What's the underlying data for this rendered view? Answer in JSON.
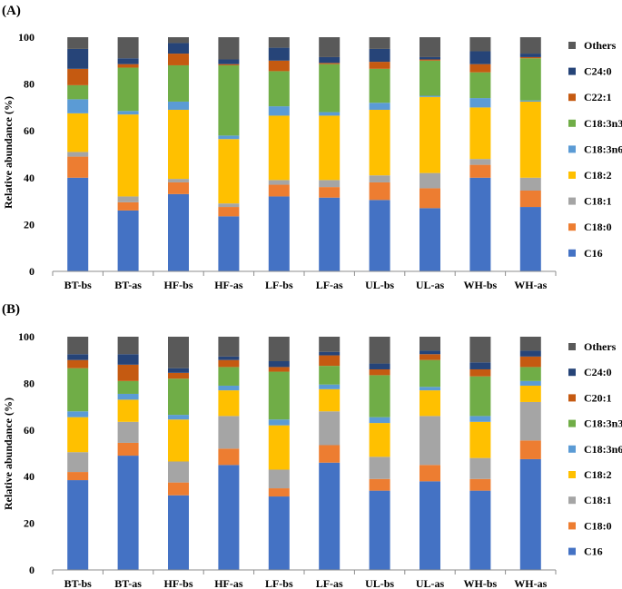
{
  "chart_data": [
    {
      "type": "bar",
      "stacked": true,
      "panel": "(A)",
      "ylabel": "Relative abundance (%)",
      "ylim": [
        0,
        100
      ],
      "yticks": [
        0,
        20,
        40,
        60,
        80,
        100
      ],
      "categories": [
        "BT-bs",
        "BT-as",
        "HF-bs",
        "HF-as",
        "LF-bs",
        "LF-as",
        "UL-bs",
        "UL-as",
        "WH-bs",
        "WH-as"
      ],
      "series": [
        {
          "name": "C16",
          "color": "#4472C4",
          "values": [
            40,
            26,
            33,
            23.5,
            32,
            31.5,
            30.5,
            27,
            40,
            27.5
          ]
        },
        {
          "name": "C18:0",
          "color": "#ED7D31",
          "values": [
            9,
            3.5,
            5,
            4,
            5,
            4.5,
            7.5,
            8.5,
            5.5,
            7
          ]
        },
        {
          "name": "C18:1",
          "color": "#A5A5A5",
          "values": [
            2,
            2.5,
            1.5,
            1.5,
            2,
            3,
            3,
            6.5,
            2.5,
            5.5
          ]
        },
        {
          "name": "C18:2",
          "color": "#FFC000",
          "values": [
            16.5,
            35,
            29.5,
            27.5,
            27.5,
            27.5,
            28,
            32.5,
            22,
            32.5
          ]
        },
        {
          "name": "C18:3n6",
          "color": "#5B9BD5",
          "values": [
            6,
            1.5,
            3.5,
            1.5,
            4,
            1.5,
            3,
            0.5,
            4,
            0.5
          ]
        },
        {
          "name": "C18:3n3",
          "color": "#70AD47",
          "values": [
            6,
            18.5,
            15.5,
            30,
            15,
            20.5,
            14.5,
            15,
            11,
            18
          ]
        },
        {
          "name": "C22:1",
          "color": "#C55A11",
          "values": [
            7,
            1.5,
            5,
            0.5,
            4.5,
            0.5,
            3,
            0.5,
            3.5,
            0.5
          ]
        },
        {
          "name": "C24:0",
          "color": "#264478",
          "values": [
            8.5,
            2.5,
            4.5,
            2,
            5.5,
            2.5,
            5.5,
            1,
            5.5,
            1.5
          ]
        },
        {
          "name": "Others",
          "color": "#595959",
          "values": [
            5,
            9,
            2.5,
            9.5,
            4.5,
            8.5,
            5,
            8.5,
            6,
            7
          ]
        }
      ],
      "legend_order": [
        "Others",
        "C24:0",
        "C22:1",
        "C18:3n3",
        "C18:3n6",
        "C18:2",
        "C18:1",
        "C18:0",
        "C16"
      ]
    },
    {
      "type": "bar",
      "stacked": true,
      "panel": "(B)",
      "ylabel": "Relative abundance (%)",
      "ylim": [
        0,
        100
      ],
      "yticks": [
        0,
        20,
        40,
        60,
        80,
        100
      ],
      "categories": [
        "BT-bs",
        "BT-as",
        "HF-bs",
        "HF-as",
        "LF-bs",
        "LF-as",
        "UL-bs",
        "UL-as",
        "WH-bs",
        "WH-as"
      ],
      "series": [
        {
          "name": "C16",
          "color": "#4472C4",
          "values": [
            38.5,
            49,
            32,
            45,
            31.5,
            46,
            34,
            38,
            34,
            47.5
          ]
        },
        {
          "name": "C18:0",
          "color": "#ED7D31",
          "values": [
            3.5,
            5.5,
            5.5,
            7,
            3.5,
            7.5,
            5,
            7,
            5,
            8
          ]
        },
        {
          "name": "C18:1",
          "color": "#A5A5A5",
          "values": [
            8.5,
            9,
            9,
            14,
            8,
            14.5,
            9.5,
            21,
            9,
            16.5
          ]
        },
        {
          "name": "C18:2",
          "color": "#FFC000",
          "values": [
            15,
            9.5,
            18,
            11,
            19,
            9.5,
            14.5,
            11,
            15.5,
            7
          ]
        },
        {
          "name": "C18:3n6",
          "color": "#5B9BD5",
          "values": [
            2.5,
            2.5,
            2,
            2,
            2.5,
            2,
            2.5,
            1.5,
            2.5,
            2
          ]
        },
        {
          "name": "C18:3n3",
          "color": "#70AD47",
          "values": [
            18.5,
            5.5,
            15.5,
            8,
            20.5,
            8,
            18,
            11.5,
            17,
            6
          ]
        },
        {
          "name": "C20:1",
          "color": "#C55A11",
          "values": [
            3.5,
            7,
            2.5,
            3,
            2,
            4.5,
            2.5,
            2.5,
            3,
            4.5
          ]
        },
        {
          "name": "C24:0",
          "color": "#264478",
          "values": [
            2.5,
            4.5,
            2,
            1.5,
            2.5,
            1.5,
            2.5,
            1.5,
            3,
            2.5
          ]
        },
        {
          "name": "Others",
          "color": "#595959",
          "values": [
            7.5,
            7.5,
            13.5,
            8.5,
            10.5,
            6.5,
            11.5,
            6,
            11,
            6
          ]
        }
      ],
      "legend_order": [
        "Others",
        "C24:0",
        "C20:1",
        "C18:3n3",
        "C18:3n6",
        "C18:2",
        "C18:1",
        "C18:0",
        "C16"
      ]
    }
  ]
}
